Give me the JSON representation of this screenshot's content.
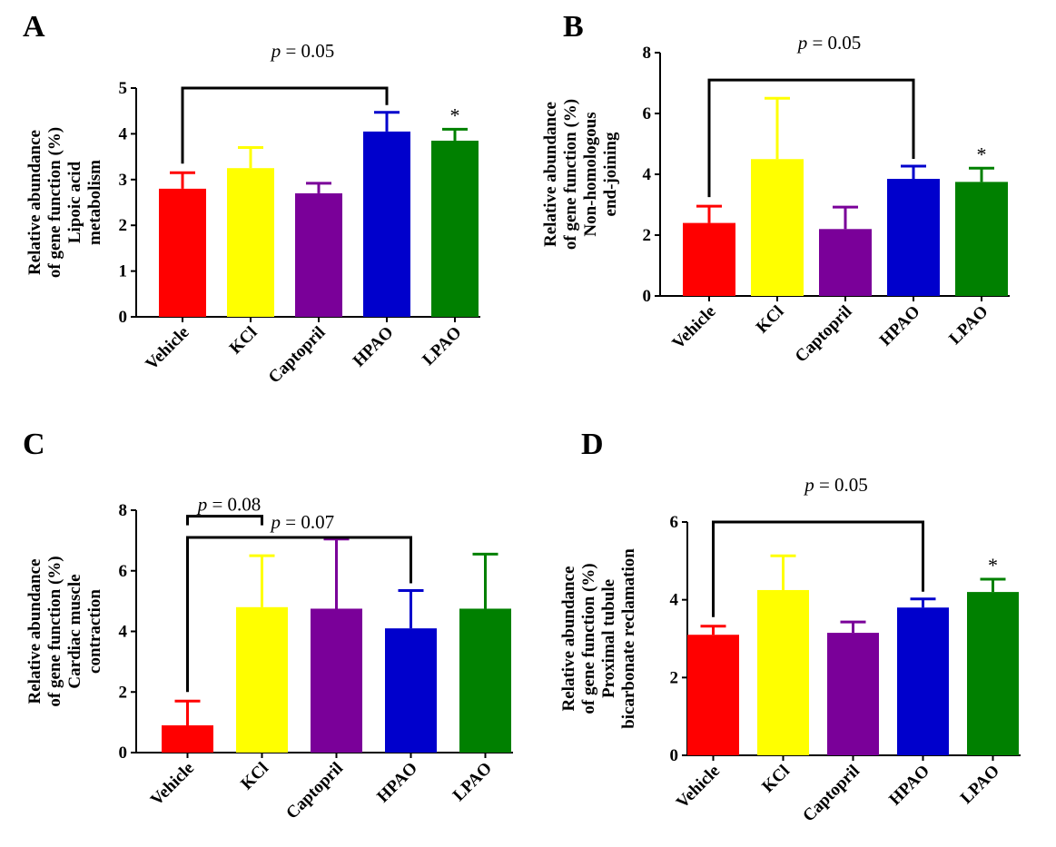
{
  "chart_data": [
    {
      "type": "bar",
      "panel": "A",
      "categories": [
        "Vehicle",
        "KCl",
        "Captopril",
        "HPAO",
        "LPAO"
      ],
      "values": [
        2.8,
        3.25,
        2.7,
        4.05,
        3.85
      ],
      "errors": [
        0.35,
        0.45,
        0.22,
        0.42,
        0.25
      ],
      "colors": [
        "#ff0000",
        "#ffff00",
        "#7a0099",
        "#0000cc",
        "#008000"
      ],
      "ylabel": [
        "Relative abundance",
        "of gene function (%)",
        "Lipoic acid",
        "metabolism"
      ],
      "ylim": [
        0,
        5
      ],
      "yticks": [
        "0",
        "1",
        "2",
        "3",
        "4",
        "5"
      ],
      "brackets": [
        {
          "from": "Vehicle",
          "to": "HPAO",
          "y": 5.0,
          "label_p": "p",
          "label_rest": " = 0.05"
        }
      ],
      "stars": [
        {
          "category": "LPAO",
          "text": "*"
        }
      ]
    },
    {
      "type": "bar",
      "panel": "B",
      "categories": [
        "Vehicle",
        "KCl",
        "Captopril",
        "HPAO",
        "LPAO"
      ],
      "values": [
        2.4,
        4.5,
        2.2,
        3.85,
        3.75
      ],
      "errors": [
        0.55,
        2.0,
        0.72,
        0.42,
        0.45
      ],
      "colors": [
        "#ff0000",
        "#ffff00",
        "#7a0099",
        "#0000cc",
        "#008000"
      ],
      "ylabel": [
        "Relative abundance",
        "of gene function (%)",
        "Non-homologous",
        "end-joining"
      ],
      "ylim": [
        0,
        8
      ],
      "yticks": [
        "0",
        "2",
        "4",
        "6",
        "8"
      ],
      "brackets": [
        {
          "from": "Vehicle",
          "to": "HPAO",
          "y": 7.1,
          "label_p": "p",
          "label_rest": " = 0.05"
        }
      ],
      "stars": [
        {
          "category": "LPAO",
          "text": "*"
        }
      ]
    },
    {
      "type": "bar",
      "panel": "C",
      "categories": [
        "Vehicle",
        "KCl",
        "Captopril",
        "HPAO",
        "LPAO"
      ],
      "values": [
        0.9,
        4.8,
        4.75,
        4.1,
        4.75
      ],
      "errors": [
        0.8,
        1.7,
        2.3,
        1.25,
        1.8
      ],
      "colors": [
        "#ff0000",
        "#ffff00",
        "#7a0099",
        "#0000cc",
        "#008000"
      ],
      "ylabel": [
        "Relative abundance",
        "of gene function (%)",
        "Cardiac muscle",
        "contraction"
      ],
      "ylim": [
        0,
        8
      ],
      "yticks": [
        "0",
        "2",
        "4",
        "6",
        "8"
      ],
      "brackets": [
        {
          "from": "Vehicle",
          "to": "KCl",
          "y": 7.8,
          "label_p": "p",
          "label_rest": " = 0.08"
        },
        {
          "from": "Vehicle",
          "to": "HPAO",
          "y": 7.1,
          "label_p": "p",
          "label_rest": " = 0.07"
        }
      ],
      "stars": []
    },
    {
      "type": "bar",
      "panel": "D",
      "categories": [
        "Vehicle",
        "KCl",
        "Captopril",
        "HPAO",
        "LPAO"
      ],
      "values": [
        3.1,
        4.25,
        3.15,
        3.8,
        4.2
      ],
      "errors": [
        0.22,
        0.88,
        0.28,
        0.22,
        0.33
      ],
      "colors": [
        "#ff0000",
        "#ffff00",
        "#7a0099",
        "#0000cc",
        "#008000"
      ],
      "ylabel": [
        "Relative abundance",
        "of gene function (%)",
        "Proximal tubule",
        "bicarbonate reclamation"
      ],
      "ylim": [
        0,
        6
      ],
      "yticks": [
        "0",
        "2",
        "4",
        "6"
      ],
      "brackets": [
        {
          "from": "Vehicle",
          "to": "HPAO",
          "y": 6.0,
          "label_p": "p",
          "label_rest": " = 0.05"
        }
      ],
      "stars": [
        {
          "category": "LPAO",
          "text": "*"
        }
      ]
    }
  ]
}
